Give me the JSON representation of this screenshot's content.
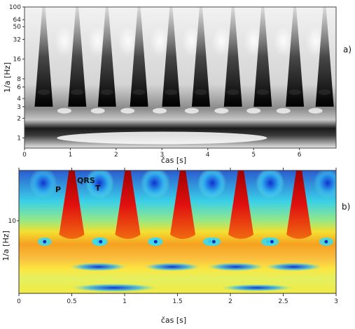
{
  "chart_data": [
    {
      "type": "heatmap",
      "panel_label": "a)",
      "colormap": "grayscale",
      "xlabel": "čas [s]",
      "ylabel": "1/a [Hz]",
      "xlim": [
        0,
        6.8
      ],
      "ylim": [
        0.7,
        100
      ],
      "y_scale": "log",
      "x_ticks": [
        "0",
        "1",
        "2",
        "3",
        "4",
        "5",
        "6"
      ],
      "y_ticks": [
        "1",
        "2",
        "3",
        "4",
        "6",
        "8",
        "16",
        "32",
        "50",
        "64",
        "100"
      ],
      "beat_times": [
        0.42,
        1.15,
        1.8,
        2.5,
        3.2,
        3.85,
        4.55,
        5.2,
        5.9,
        6.55
      ]
    },
    {
      "type": "heatmap",
      "panel_label": "b)",
      "colormap": "jet",
      "xlabel": "čas [s]",
      "ylabel": "1/a [Hz]",
      "xlim": [
        0,
        3
      ],
      "x_ticks": [
        "0",
        "0.5",
        "1",
        "1.5",
        "2",
        "2.5",
        "3"
      ],
      "y_ticks": [
        "10"
      ],
      "beat_times": [
        0.5,
        1.03,
        1.55,
        2.1,
        2.65
      ],
      "annotations": [
        "P",
        "QRS",
        "T"
      ]
    }
  ]
}
